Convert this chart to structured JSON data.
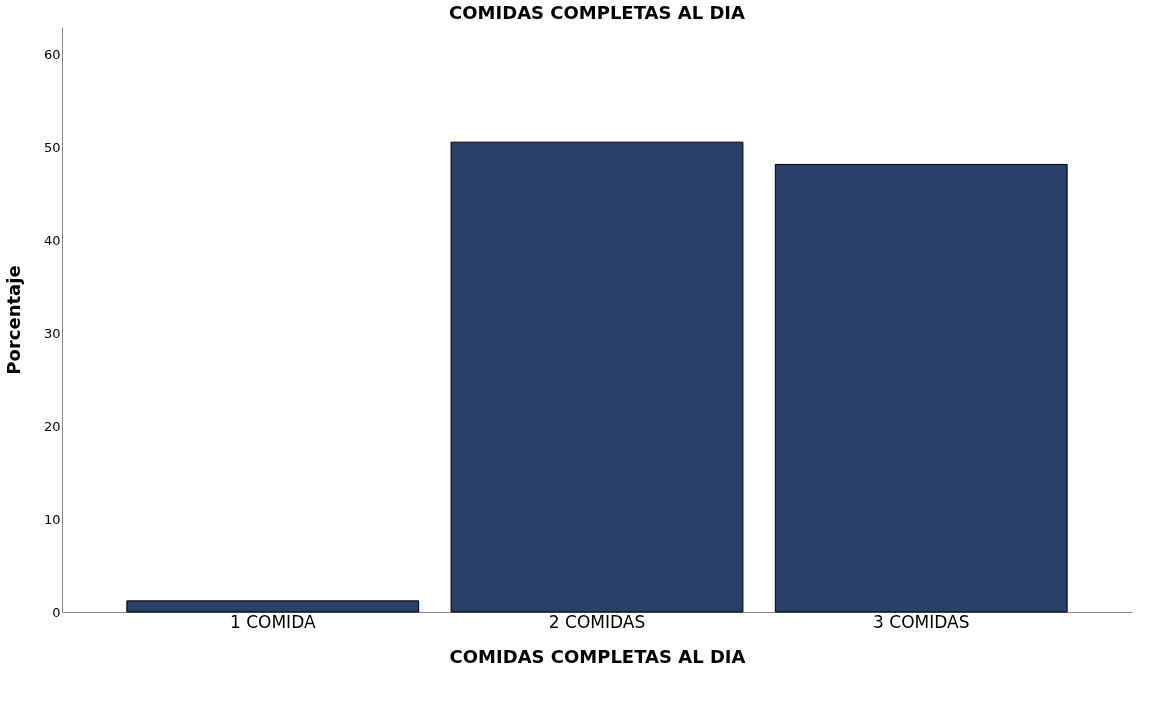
{
  "chart_data": {
    "type": "bar",
    "title": "COMIDAS COMPLETAS AL DIA",
    "xlabel": "COMIDAS COMPLETAS AL DIA",
    "ylabel": "Porcentaje",
    "categories": [
      "1 COMIDA",
      "2 COMIDAS",
      "3 COMIDAS"
    ],
    "values": [
      1.2,
      50.6,
      48.2
    ],
    "color": "#2b3f6b",
    "ylim": [
      0,
      63
    ],
    "yticks": [
      0,
      10,
      20,
      30,
      40,
      50,
      60
    ],
    "grid": false
  }
}
